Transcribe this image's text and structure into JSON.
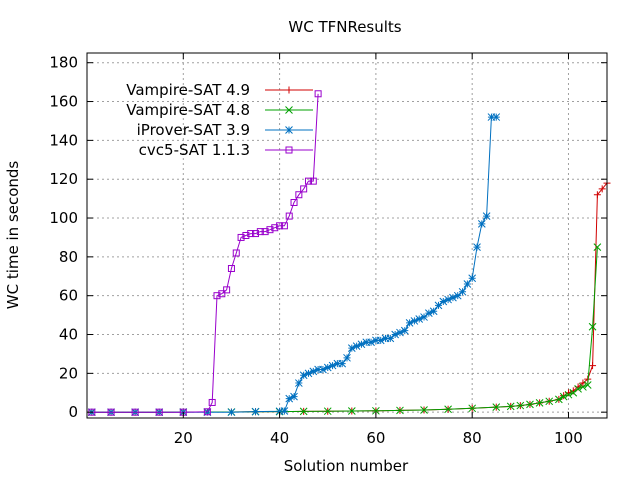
{
  "chart_data": {
    "type": "line",
    "title": "WC TFNResults",
    "xlabel": "Solution number",
    "ylabel": "WC time in seconds",
    "xlim": [
      0,
      108
    ],
    "ylim": [
      -3,
      185
    ],
    "xticks": [
      20,
      40,
      60,
      80,
      100
    ],
    "yticks": [
      0,
      20,
      40,
      60,
      80,
      100,
      120,
      140,
      160,
      180
    ],
    "grid": true,
    "legend_position": "top-left",
    "series": [
      {
        "name": "Vampire-SAT 4.9",
        "color": "#d00000",
        "marker": "plus",
        "x": [
          1,
          5,
          10,
          15,
          20,
          25,
          30,
          35,
          40,
          45,
          50,
          55,
          60,
          65,
          70,
          75,
          80,
          85,
          88,
          90,
          92,
          94,
          96,
          98,
          99,
          100,
          101,
          102,
          103,
          104,
          105,
          106,
          107,
          108
        ],
        "y": [
          0,
          0,
          0,
          0,
          0.1,
          0.1,
          0.1,
          0.2,
          0.3,
          0.4,
          0.5,
          0.6,
          0.7,
          0.9,
          1.1,
          1.5,
          2.0,
          2.6,
          3.0,
          3.4,
          4.0,
          4.8,
          5.6,
          6.6,
          8.5,
          10,
          11,
          13,
          15,
          17,
          24,
          112,
          115,
          118
        ]
      },
      {
        "name": "Vampire-SAT 4.8",
        "color": "#00a000",
        "marker": "cross",
        "x": [
          1,
          5,
          10,
          15,
          20,
          25,
          30,
          35,
          40,
          45,
          50,
          55,
          60,
          65,
          70,
          75,
          80,
          85,
          88,
          90,
          92,
          94,
          96,
          98,
          99,
          100,
          101,
          102,
          103,
          104,
          105,
          106
        ],
        "y": [
          0,
          0,
          0,
          0,
          0.1,
          0.1,
          0.1,
          0.2,
          0.3,
          0.4,
          0.5,
          0.6,
          0.7,
          0.9,
          1.1,
          1.5,
          2.0,
          2.6,
          3.0,
          3.4,
          4.0,
          4.8,
          5.6,
          6.6,
          8.0,
          9,
          10,
          12,
          13,
          14,
          44,
          85
        ]
      },
      {
        "name": "iProver-SAT 3.9",
        "color": "#0070c0",
        "marker": "star",
        "x": [
          1,
          5,
          10,
          15,
          20,
          25,
          30,
          35,
          40,
          41,
          42,
          43,
          44,
          45,
          46,
          47,
          48,
          49,
          50,
          51,
          52,
          53,
          54,
          55,
          56,
          57,
          58,
          59,
          60,
          61,
          62,
          63,
          64,
          65,
          66,
          67,
          68,
          69,
          70,
          71,
          72,
          73,
          74,
          75,
          76,
          77,
          78,
          79,
          80,
          81,
          82,
          83,
          84,
          85
        ],
        "y": [
          0,
          0,
          0,
          0,
          0,
          0,
          0,
          0.3,
          0.5,
          0.6,
          7,
          8,
          15,
          19,
          20,
          21,
          22,
          22,
          23,
          24,
          25,
          25,
          28,
          33,
          34,
          35,
          36,
          36,
          37,
          37,
          38,
          38,
          40,
          41,
          42,
          46,
          47,
          48,
          49,
          51,
          52,
          55,
          57,
          58,
          59,
          60,
          62,
          66,
          69,
          85,
          97,
          101,
          152,
          152
        ]
      },
      {
        "name": "cvc5-SAT 1.1.3",
        "color": "#9900cc",
        "marker": "box",
        "x": [
          1,
          5,
          10,
          15,
          20,
          25,
          26,
          27,
          28,
          29,
          30,
          31,
          32,
          33,
          34,
          35,
          36,
          37,
          38,
          39,
          40,
          41,
          42,
          43,
          44,
          45,
          46,
          47,
          48
        ],
        "y": [
          0,
          0,
          0,
          0,
          0,
          0.2,
          5,
          60,
          61,
          63,
          74,
          82,
          90,
          91,
          92,
          92,
          93,
          93,
          94,
          95,
          96,
          96,
          101,
          108,
          112,
          115,
          119,
          119,
          164
        ]
      }
    ]
  }
}
